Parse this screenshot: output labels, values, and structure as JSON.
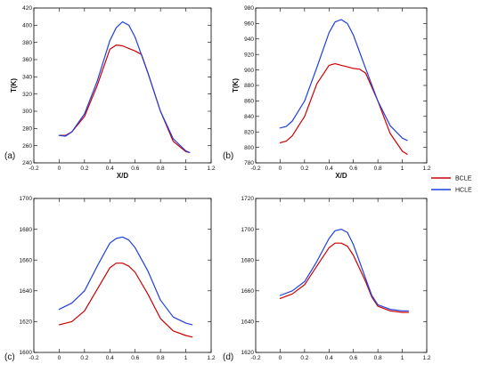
{
  "legend": {
    "entries": [
      {
        "name": "BCLE",
        "color": "#cc0000"
      },
      {
        "name": "HCLE",
        "color": "#1f3fe0"
      }
    ]
  },
  "chart_data": [
    {
      "type": "line",
      "panel_label": "(a)",
      "xlabel": "X/D",
      "ylabel": "T(K)",
      "xlim": [
        -0.2,
        1.2
      ],
      "ylim": [
        240,
        420
      ],
      "xticks": [
        "-0.2",
        "0",
        "0.2",
        "0.4",
        "0.6",
        "0.8",
        "1",
        "1.2"
      ],
      "yticks": [
        "240",
        "260",
        "280",
        "300",
        "320",
        "340",
        "360",
        "380",
        "400",
        "420"
      ],
      "series": [
        {
          "name": "BCLE",
          "color": "#cc0000",
          "x": [
            0,
            0.05,
            0.1,
            0.2,
            0.3,
            0.4,
            0.45,
            0.5,
            0.55,
            0.6,
            0.65,
            0.7,
            0.8,
            0.9,
            1.0,
            1.03
          ],
          "y": [
            272,
            272,
            276,
            294,
            330,
            372,
            377,
            376,
            373,
            370,
            366,
            345,
            300,
            265,
            253,
            252
          ]
        },
        {
          "name": "HCLE",
          "color": "#1f3fe0",
          "x": [
            0,
            0.05,
            0.1,
            0.2,
            0.3,
            0.4,
            0.45,
            0.5,
            0.55,
            0.6,
            0.7,
            0.8,
            0.9,
            1.0,
            1.03
          ],
          "y": [
            272,
            271,
            276,
            297,
            335,
            382,
            397,
            404,
            400,
            386,
            345,
            300,
            268,
            254,
            252
          ]
        }
      ]
    },
    {
      "type": "line",
      "panel_label": "(b)",
      "xlabel": "X/D",
      "ylabel": "T(K)",
      "xlim": [
        -0.2,
        1.2
      ],
      "ylim": [
        780,
        980
      ],
      "xticks": [
        "-0.2",
        "0",
        "0.2",
        "0.4",
        "0.6",
        "0.8",
        "1",
        "1.2"
      ],
      "yticks": [
        "780",
        "800",
        "820",
        "840",
        "860",
        "880",
        "900",
        "920",
        "940",
        "960",
        "980"
      ],
      "series": [
        {
          "name": "BCLE",
          "color": "#cc0000",
          "x": [
            0,
            0.05,
            0.1,
            0.2,
            0.3,
            0.4,
            0.45,
            0.5,
            0.55,
            0.6,
            0.65,
            0.7,
            0.8,
            0.9,
            1.0,
            1.04
          ],
          "y": [
            806,
            808,
            815,
            840,
            882,
            906,
            908,
            906,
            904,
            902,
            901,
            896,
            860,
            818,
            795,
            791
          ]
        },
        {
          "name": "HCLE",
          "color": "#1f3fe0",
          "x": [
            0,
            0.05,
            0.1,
            0.2,
            0.3,
            0.4,
            0.45,
            0.5,
            0.55,
            0.6,
            0.7,
            0.8,
            0.9,
            1.0,
            1.04
          ],
          "y": [
            825,
            827,
            834,
            860,
            903,
            948,
            962,
            965,
            960,
            945,
            902,
            860,
            828,
            812,
            809
          ]
        }
      ]
    },
    {
      "type": "line",
      "panel_label": "(c)",
      "xlabel": "",
      "ylabel": "",
      "xlim": [
        -0.2,
        1.2
      ],
      "ylim": [
        1600,
        1700
      ],
      "xticks": [
        "-0.2",
        "0",
        "0.2",
        "0.4",
        "0.6",
        "0.8",
        "1",
        "1.2"
      ],
      "yticks": [
        "1600",
        "1620",
        "1640",
        "1660",
        "1680",
        "1700"
      ],
      "series": [
        {
          "name": "BCLE",
          "color": "#cc0000",
          "x": [
            0,
            0.1,
            0.2,
            0.3,
            0.4,
            0.45,
            0.5,
            0.55,
            0.6,
            0.7,
            0.8,
            0.9,
            1.0,
            1.05
          ],
          "y": [
            1618,
            1620,
            1627,
            1641,
            1655,
            1658,
            1658,
            1656,
            1652,
            1638,
            1622,
            1614,
            1611,
            1610
          ]
        },
        {
          "name": "HCLE",
          "color": "#1f3fe0",
          "x": [
            0,
            0.1,
            0.2,
            0.3,
            0.4,
            0.45,
            0.5,
            0.55,
            0.6,
            0.7,
            0.8,
            0.9,
            1.0,
            1.05
          ],
          "y": [
            1628,
            1632,
            1640,
            1656,
            1671,
            1674,
            1675,
            1673,
            1668,
            1653,
            1634,
            1623,
            1619,
            1618
          ]
        }
      ]
    },
    {
      "type": "line",
      "panel_label": "(d)",
      "xlabel": "",
      "ylabel": "",
      "xlim": [
        -0.2,
        1.2
      ],
      "ylim": [
        1620,
        1720
      ],
      "xticks": [
        "-0.2",
        "0",
        "0.2",
        "0.4",
        "0.6",
        "0.8",
        "1",
        "1.2"
      ],
      "yticks": [
        "1620",
        "1640",
        "1660",
        "1680",
        "1700",
        "1720"
      ],
      "series": [
        {
          "name": "BCLE",
          "color": "#cc0000",
          "x": [
            0,
            0.1,
            0.2,
            0.3,
            0.4,
            0.45,
            0.5,
            0.55,
            0.6,
            0.7,
            0.75,
            0.8,
            0.9,
            1.0,
            1.05
          ],
          "y": [
            1655,
            1658,
            1664,
            1676,
            1688,
            1691,
            1691,
            1689,
            1683,
            1666,
            1656,
            1650,
            1647,
            1646,
            1646
          ]
        },
        {
          "name": "HCLE",
          "color": "#1f3fe0",
          "x": [
            0,
            0.1,
            0.2,
            0.3,
            0.4,
            0.45,
            0.5,
            0.55,
            0.6,
            0.7,
            0.75,
            0.8,
            0.9,
            1.0,
            1.05
          ],
          "y": [
            1657,
            1660,
            1666,
            1679,
            1694,
            1699,
            1700,
            1698,
            1690,
            1668,
            1657,
            1651,
            1648,
            1647,
            1647
          ]
        }
      ]
    }
  ]
}
